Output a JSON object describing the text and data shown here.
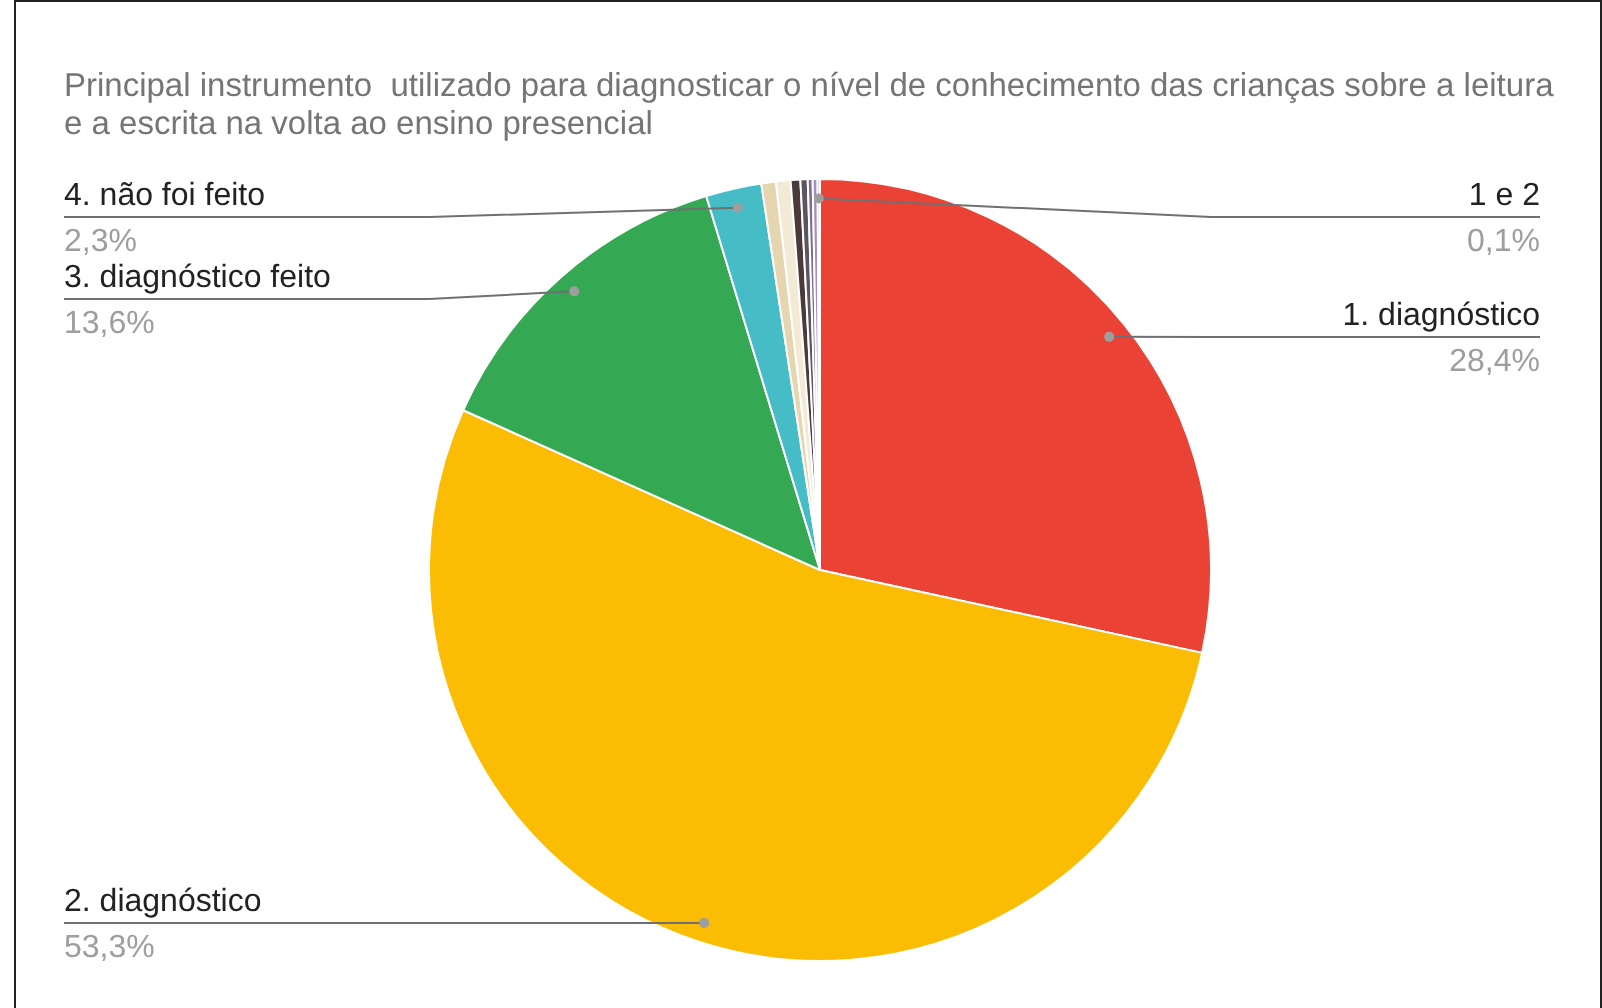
{
  "chart_data": {
    "type": "pie",
    "title": "Principal instrumento  utilizado para diagnosticar o nível de conhecimento das crianças sobre a leitura e a escrita na volta ao ensino presencial",
    "categories": [
      "1. diagnóstico",
      "2. diagnóstico",
      "3. diagnóstico feito",
      "4. não foi feito",
      null,
      null,
      null,
      null,
      null,
      null,
      "1 e 2"
    ],
    "values": [
      28.4,
      53.3,
      13.6,
      2.3,
      0.6,
      0.6,
      0.4,
      0.3,
      0.2,
      0.2,
      0.1
    ],
    "colors": [
      "#ea4335",
      "#fbbc04",
      "#34a853",
      "#46bdc6",
      "#e6d6b0",
      "#f3ead6",
      "#4a3a3a",
      "#5a5560",
      "#7b6e86",
      "#a48cc4",
      "#c9a0dc"
    ],
    "value_labels": [
      "28,4%",
      "53,3%",
      "13,6%",
      "2,3%",
      null,
      null,
      null,
      null,
      null,
      null,
      "0,1%"
    ]
  }
}
